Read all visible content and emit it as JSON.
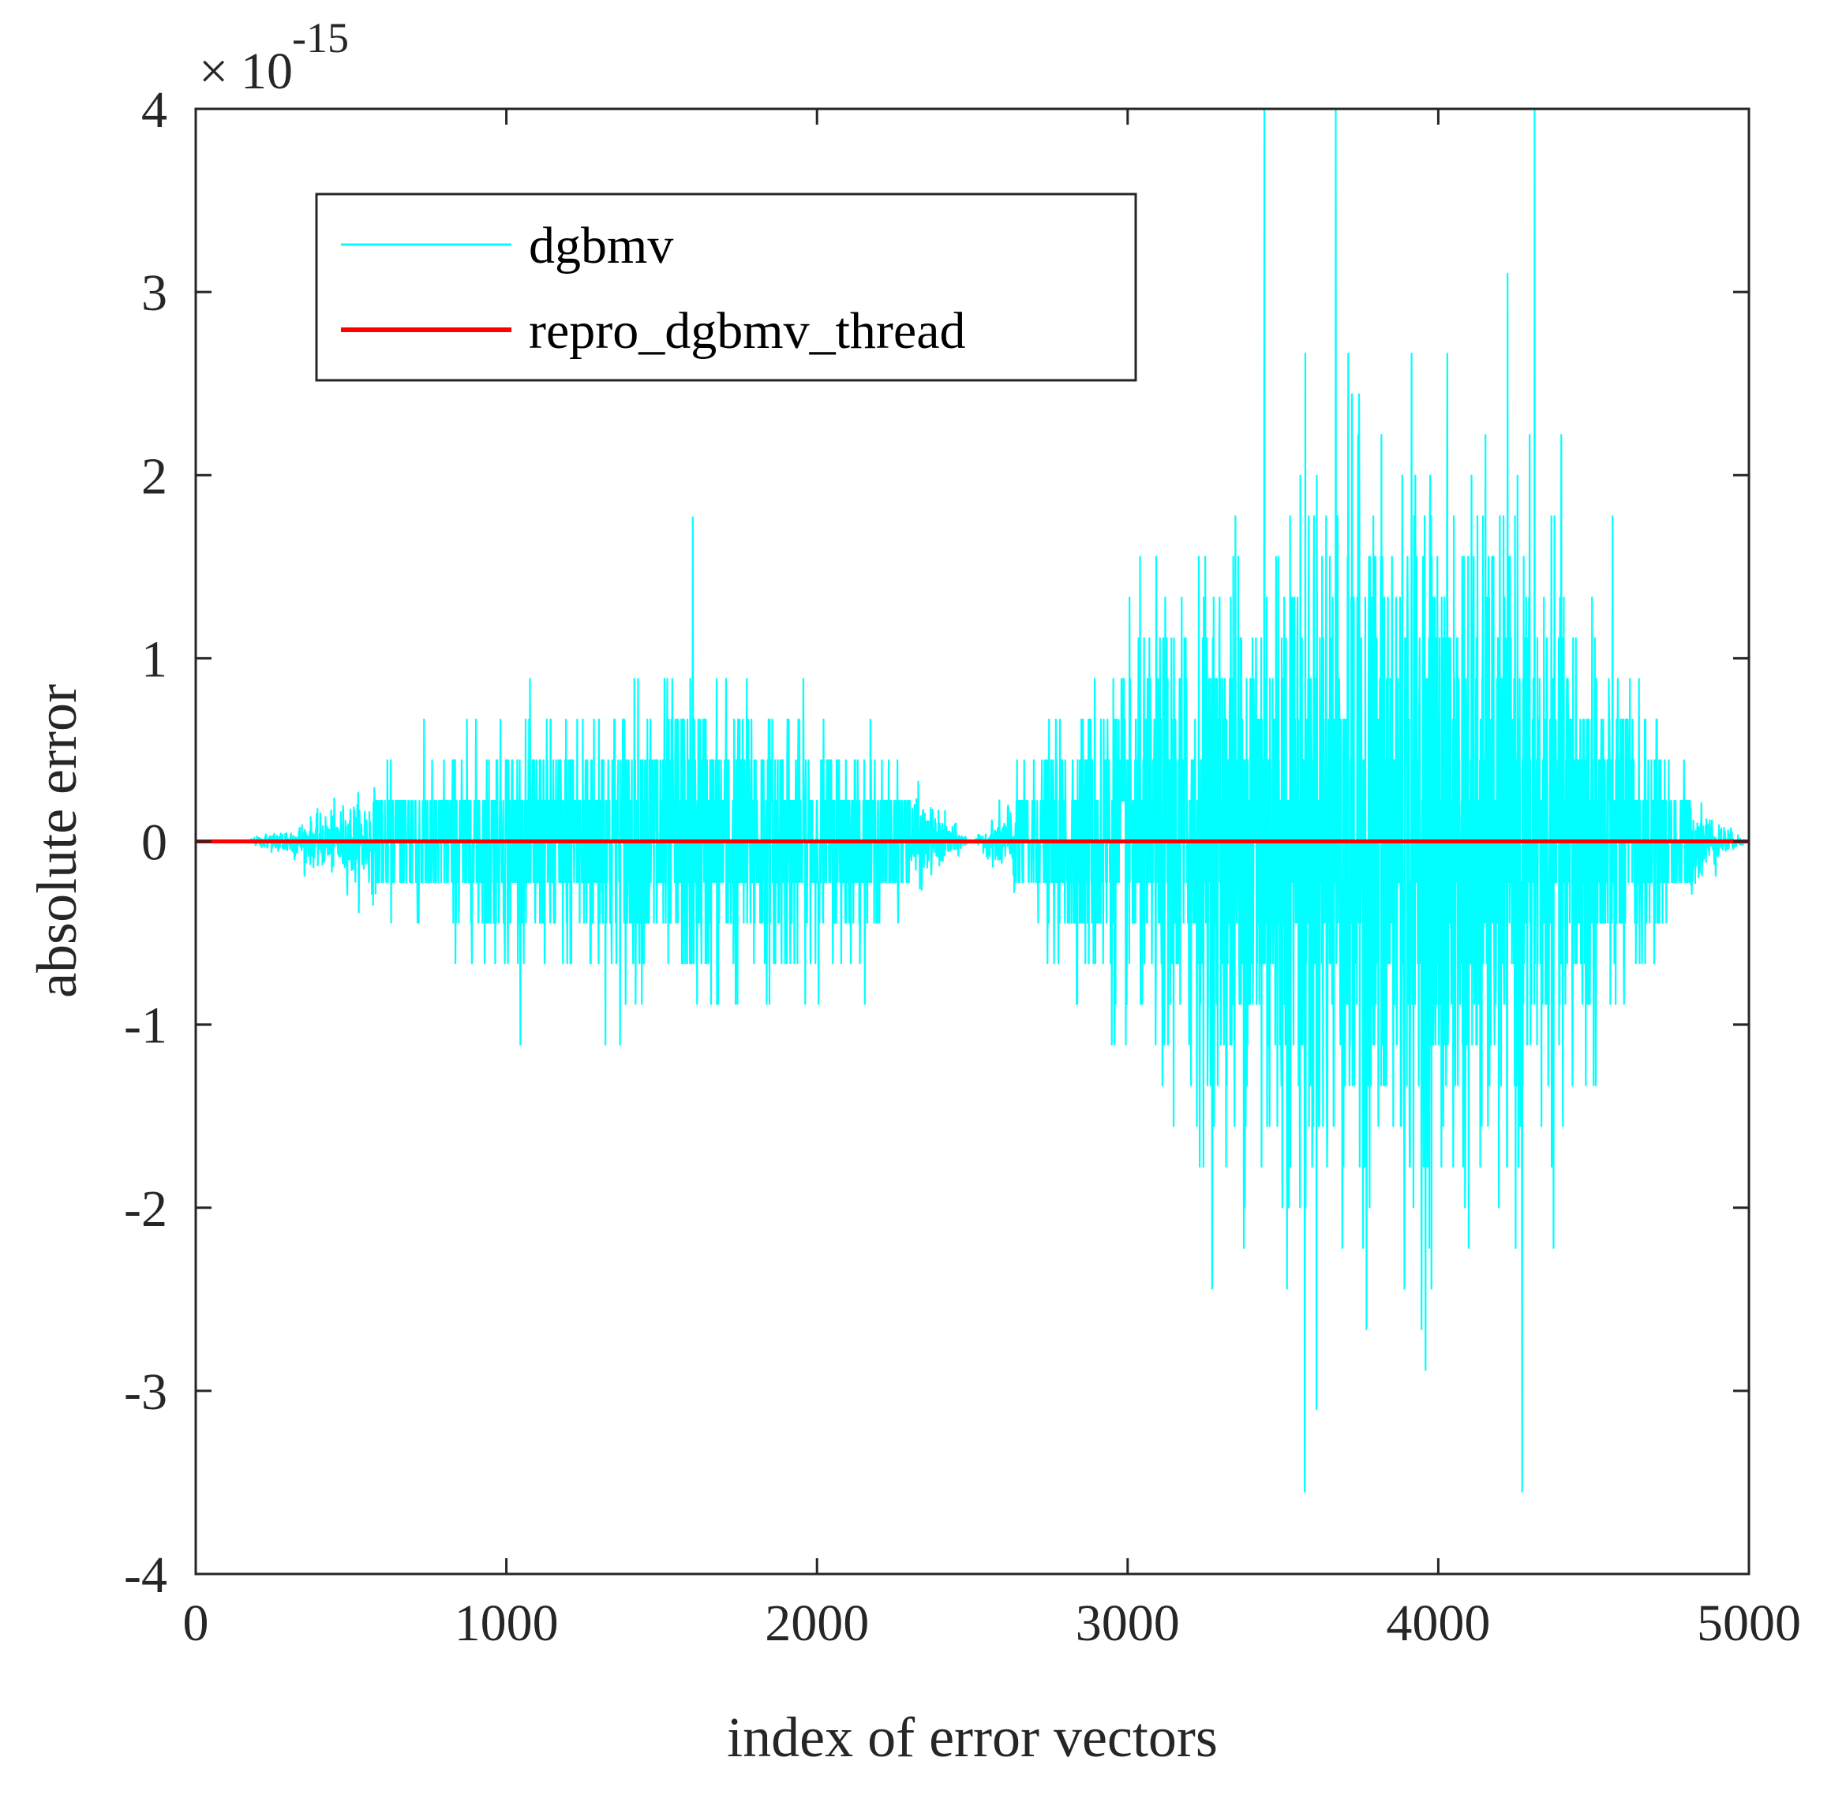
{
  "chart_data": {
    "type": "line",
    "title": "",
    "xlabel": "index of error vectors",
    "ylabel": "absolute error",
    "xlim": [
      0,
      5000
    ],
    "ylim": [
      -4,
      4
    ],
    "y_scale_factor": {
      "times": "×",
      "base": "10",
      "exponent": "-15"
    },
    "xticks": [
      0,
      1000,
      2000,
      3000,
      4000,
      5000
    ],
    "xtick_labels": [
      "0",
      "1000",
      "2000",
      "3000",
      "4000",
      "5000"
    ],
    "yticks": [
      4,
      3,
      2,
      1,
      0,
      -1,
      -2,
      -3,
      -4
    ],
    "ytick_labels": [
      "4",
      "3",
      "2",
      "1",
      "0",
      "-1",
      "-2",
      "-3",
      "-4"
    ],
    "grid": false,
    "legend_position": "top-left",
    "series": [
      {
        "name": "dgbmv",
        "color": "#00FFFF",
        "description_envelope": {
          "x": [
            0,
            150,
            200,
            400,
            700,
            1000,
            1300,
            1600,
            1900,
            2200,
            2450,
            2500,
            2550,
            2700,
            2900,
            3100,
            3300,
            3500,
            3700,
            3900,
            4100,
            4300,
            4500,
            4700,
            4850,
            4950,
            5000
          ],
          "upper": [
            0,
            0,
            0.03,
            0.15,
            0.4,
            0.6,
            0.8,
            0.9,
            0.75,
            0.45,
            0.08,
            0.0,
            0.08,
            0.45,
            0.85,
            1.3,
            1.7,
            2.1,
            2.2,
            2.2,
            2.1,
            1.8,
            1.3,
            0.6,
            0.2,
            0.05,
            0
          ],
          "lower": [
            0,
            0,
            -0.03,
            -0.15,
            -0.4,
            -0.6,
            -0.8,
            -0.9,
            -0.75,
            -0.45,
            -0.08,
            0.0,
            -0.08,
            -0.45,
            -0.85,
            -1.3,
            -1.7,
            -2.1,
            -2.2,
            -2.2,
            -2.1,
            -1.8,
            -1.3,
            -0.6,
            -0.2,
            -0.05,
            0
          ]
        },
        "notable_peaks": {
          "x": [
            1600,
            3440,
            3670,
            4310,
            3570,
            4270,
            2500
          ],
          "values": [
            1.77,
            4.0,
            4.0,
            4.0,
            -3.55,
            -3.55,
            0.0
          ]
        }
      },
      {
        "name": "repro_dgbmv_thread",
        "color": "#FF0000",
        "x": [
          0,
          5000
        ],
        "values": [
          0,
          0
        ]
      }
    ]
  }
}
